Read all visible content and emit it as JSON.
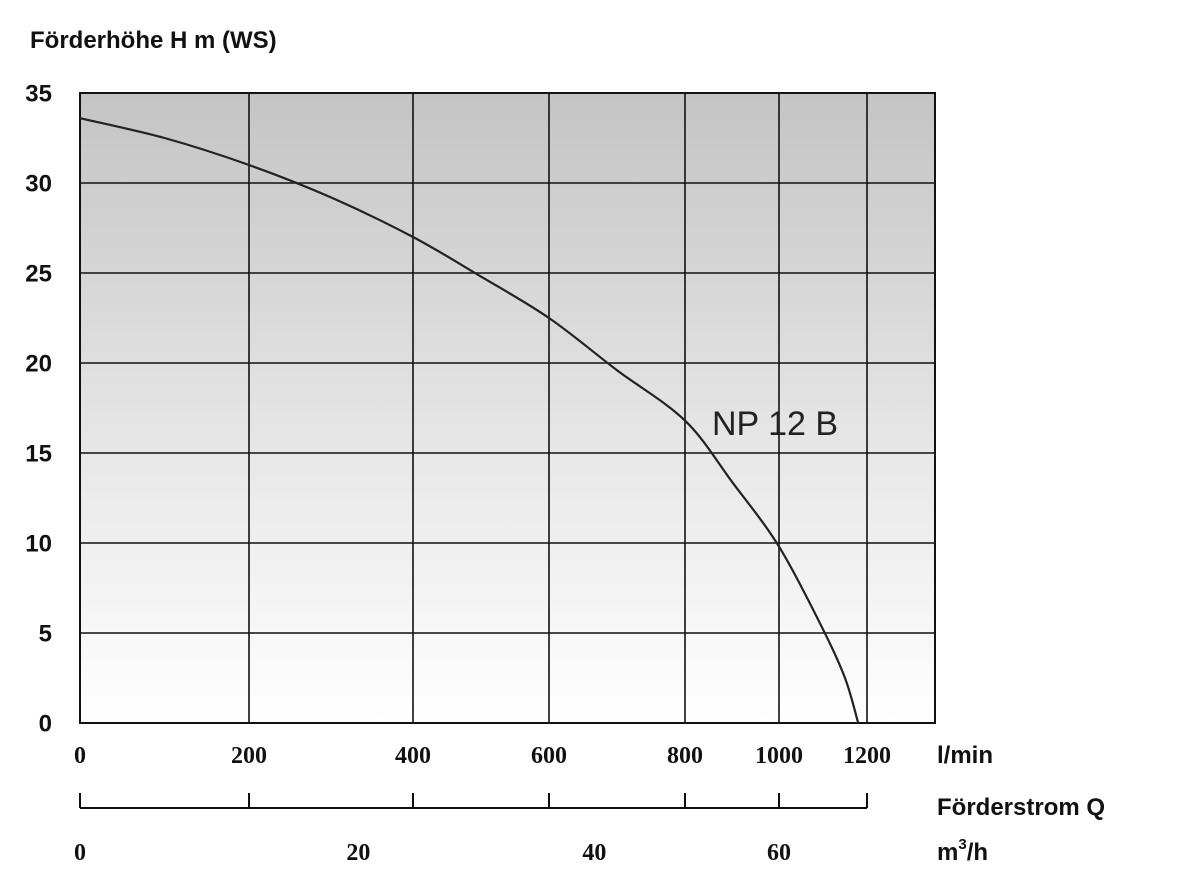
{
  "chart_data": {
    "type": "line",
    "ylabel": "Förderhöhe H m (WS)",
    "ylim": [
      0,
      35
    ],
    "yticks": [
      "0",
      "5",
      "10",
      "15",
      "20",
      "25",
      "30",
      "35"
    ],
    "x_lmin": {
      "unit": "l/min",
      "ticks": [
        "0",
        "200",
        "400",
        "600",
        "800",
        "1000",
        "1200"
      ],
      "tick_values": [
        0,
        200,
        400,
        600,
        800,
        1000,
        1200
      ]
    },
    "x_m3h": {
      "title": "Förderstrom Q",
      "unit_base": "m",
      "unit_sup": "3",
      "unit_tail": "/h",
      "ticks": [
        "0",
        "20",
        "40",
        "60"
      ],
      "tick_values": [
        0,
        20,
        40,
        60
      ]
    },
    "series": [
      {
        "name": "NP 12 B",
        "x": [
          0,
          100,
          200,
          300,
          400,
          500,
          600,
          700,
          800,
          900,
          1000,
          1100,
          1150,
          1180
        ],
        "y": [
          33.6,
          32.5,
          31.0,
          29.2,
          27.0,
          24.8,
          22.5,
          19.6,
          16.8,
          13.4,
          9.8,
          5.2,
          2.5,
          0
        ]
      }
    ],
    "grid": true,
    "legend": "inline"
  }
}
